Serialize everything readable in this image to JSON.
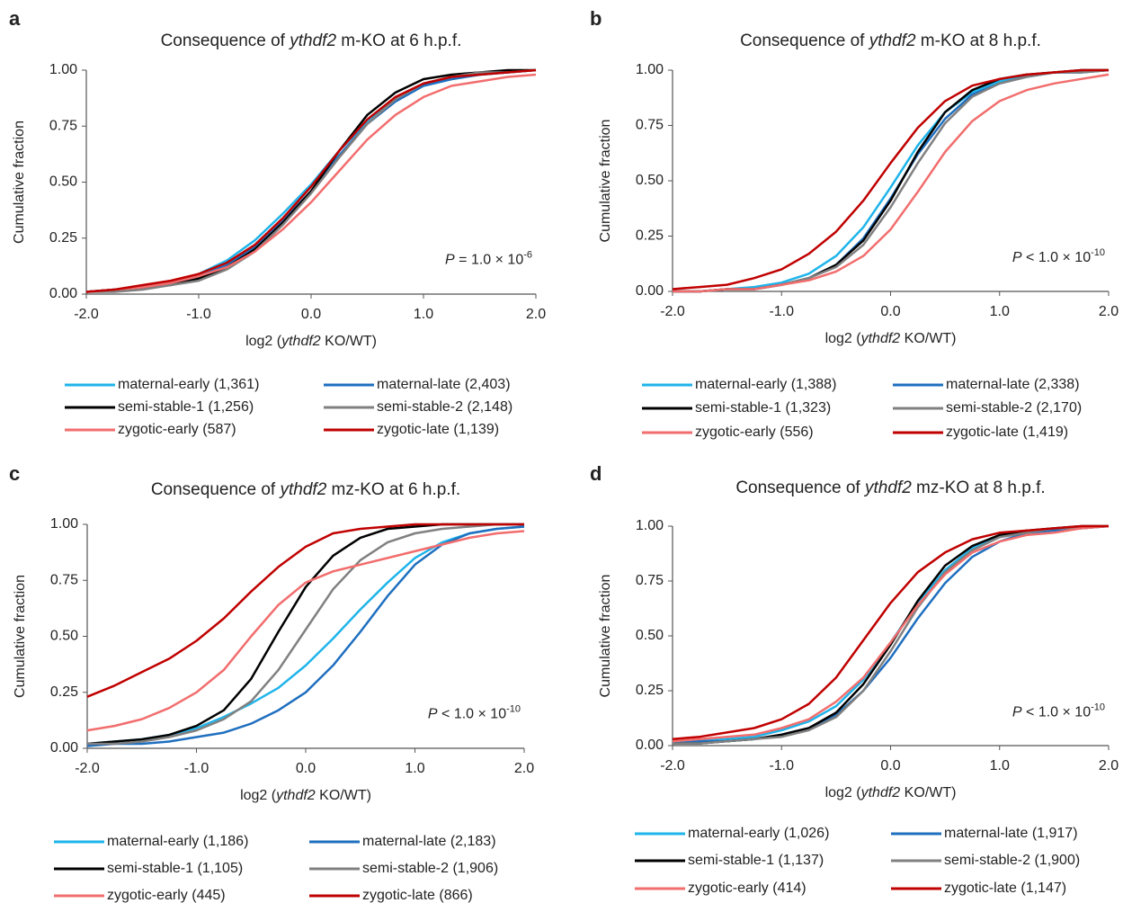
{
  "chart_data": [
    {
      "type": "line",
      "panel": "a",
      "title": [
        "Consequence of ",
        "ythdf2",
        " m-KO at 6 h.p.f."
      ],
      "x_label": [
        "log2 (",
        "ythdf2",
        " KO/WT)"
      ],
      "y_label": "Cumulative fraction",
      "annotation": [
        "P",
        " = 1.0 × 10",
        "-6"
      ],
      "x": [
        -2,
        -1.75,
        -1.5,
        -1.25,
        -1,
        -0.75,
        -0.5,
        -0.25,
        0,
        0.25,
        0.5,
        0.75,
        1,
        1.25,
        1.5,
        1.75,
        2
      ],
      "xlim": [
        -2,
        2
      ],
      "xticks": [
        {
          "value": -2,
          "label": "-2.0"
        },
        {
          "value": -1,
          "label": "-1.0"
        },
        {
          "value": 0,
          "label": "0.0"
        },
        {
          "value": 1,
          "label": "1.0"
        },
        {
          "value": 2,
          "label": "2.0"
        }
      ],
      "ylim": [
        0,
        1
      ],
      "yticks": [
        {
          "value": 0,
          "label": "0.00"
        },
        {
          "value": 0.25,
          "label": "0.25"
        },
        {
          "value": 0.5,
          "label": "0.50"
        },
        {
          "value": 0.75,
          "label": "0.75"
        },
        {
          "value": 1,
          "label": "1.00"
        }
      ],
      "series": [
        {
          "name": "maternal-early (1,361)",
          "color": "#1fb4ea",
          "values": [
            0.01,
            0.02,
            0.03,
            0.05,
            0.09,
            0.15,
            0.24,
            0.36,
            0.49,
            0.64,
            0.77,
            0.87,
            0.93,
            0.96,
            0.98,
            0.99,
            1.0
          ]
        },
        {
          "name": "maternal-late (2,403)",
          "color": "#1f6fbf",
          "values": [
            0.01,
            0.02,
            0.03,
            0.05,
            0.08,
            0.13,
            0.21,
            0.33,
            0.46,
            0.62,
            0.76,
            0.86,
            0.93,
            0.96,
            0.98,
            0.99,
            1.0
          ]
        },
        {
          "name": "semi-stable-1 (1,256)",
          "color": "#000000",
          "values": [
            0.01,
            0.02,
            0.03,
            0.04,
            0.07,
            0.12,
            0.2,
            0.32,
            0.46,
            0.64,
            0.8,
            0.9,
            0.96,
            0.98,
            0.99,
            1.0,
            1.0
          ]
        },
        {
          "name": "semi-stable-2 (2,148)",
          "color": "#808080",
          "values": [
            0.01,
            0.01,
            0.02,
            0.04,
            0.06,
            0.11,
            0.19,
            0.31,
            0.45,
            0.61,
            0.76,
            0.87,
            0.94,
            0.97,
            0.99,
            0.99,
            1.0
          ]
        },
        {
          "name": "zygotic-early (587)",
          "color": "#f26d6d",
          "values": [
            0.01,
            0.02,
            0.03,
            0.05,
            0.08,
            0.12,
            0.19,
            0.29,
            0.41,
            0.55,
            0.69,
            0.8,
            0.88,
            0.93,
            0.95,
            0.97,
            0.98
          ]
        },
        {
          "name": "zygotic-late (1,139)",
          "color": "#c00000",
          "values": [
            0.01,
            0.02,
            0.04,
            0.06,
            0.09,
            0.14,
            0.22,
            0.34,
            0.48,
            0.64,
            0.78,
            0.88,
            0.94,
            0.97,
            0.98,
            0.99,
            1.0
          ]
        }
      ]
    },
    {
      "type": "line",
      "panel": "b",
      "title": [
        "Consequence of ",
        "ythdf2",
        " m-KO at 8 h.p.f."
      ],
      "x_label": [
        "log2 (",
        "ythdf2",
        " KO/WT)"
      ],
      "y_label": "Cumulative fraction",
      "annotation": [
        "P",
        " < 1.0 × 10",
        "-10"
      ],
      "x": [
        -2,
        -1.75,
        -1.5,
        -1.25,
        -1,
        -0.75,
        -0.5,
        -0.25,
        0,
        0.25,
        0.5,
        0.75,
        1,
        1.25,
        1.5,
        1.75,
        2
      ],
      "xlim": [
        -2,
        2
      ],
      "xticks": [
        {
          "value": -2,
          "label": "-2.0"
        },
        {
          "value": -1,
          "label": "-1.0"
        },
        {
          "value": 0,
          "label": "0.0"
        },
        {
          "value": 1,
          "label": "1.0"
        },
        {
          "value": 2,
          "label": "2.0"
        }
      ],
      "ylim": [
        0,
        1
      ],
      "yticks": [
        {
          "value": 0,
          "label": "0.00"
        },
        {
          "value": 0.25,
          "label": "0.25"
        },
        {
          "value": 0.5,
          "label": "0.50"
        },
        {
          "value": 0.75,
          "label": "0.75"
        },
        {
          "value": 1,
          "label": "1.00"
        }
      ],
      "series": [
        {
          "name": "maternal-early (1,388)",
          "color": "#1fb4ea",
          "values": [
            0.0,
            0.0,
            0.01,
            0.02,
            0.04,
            0.08,
            0.16,
            0.29,
            0.47,
            0.66,
            0.81,
            0.9,
            0.95,
            0.97,
            0.99,
            0.99,
            1.0
          ]
        },
        {
          "name": "maternal-late (2,338)",
          "color": "#1f6fbf",
          "values": [
            0.0,
            0.0,
            0.01,
            0.01,
            0.03,
            0.06,
            0.12,
            0.24,
            0.42,
            0.62,
            0.78,
            0.89,
            0.94,
            0.97,
            0.99,
            0.99,
            1.0
          ]
        },
        {
          "name": "semi-stable-1 (1,323)",
          "color": "#000000",
          "values": [
            0.0,
            0.0,
            0.01,
            0.01,
            0.03,
            0.06,
            0.12,
            0.23,
            0.41,
            0.63,
            0.81,
            0.91,
            0.96,
            0.98,
            0.99,
            1.0,
            1.0
          ]
        },
        {
          "name": "semi-stable-2 (2,170)",
          "color": "#808080",
          "values": [
            0.0,
            0.0,
            0.01,
            0.01,
            0.03,
            0.06,
            0.11,
            0.21,
            0.38,
            0.58,
            0.76,
            0.88,
            0.94,
            0.97,
            0.99,
            0.99,
            1.0
          ]
        },
        {
          "name": "zygotic-early (556)",
          "color": "#f26d6d",
          "values": [
            0.0,
            0.0,
            0.01,
            0.01,
            0.03,
            0.05,
            0.09,
            0.16,
            0.28,
            0.45,
            0.63,
            0.77,
            0.86,
            0.91,
            0.94,
            0.96,
            0.98
          ]
        },
        {
          "name": "zygotic-late (1,419)",
          "color": "#c00000",
          "values": [
            0.01,
            0.02,
            0.03,
            0.06,
            0.1,
            0.17,
            0.27,
            0.41,
            0.58,
            0.74,
            0.86,
            0.93,
            0.96,
            0.98,
            0.99,
            1.0,
            1.0
          ]
        }
      ]
    },
    {
      "type": "line",
      "panel": "c",
      "title": [
        "Consequence of ",
        "ythdf2",
        " mz-KO at 6 h.p.f."
      ],
      "x_label": [
        "log2 (",
        "ythdf2",
        " KO/WT)"
      ],
      "y_label": "Cumulative fraction",
      "annotation": [
        "P",
        " < 1.0 × 10",
        "-10"
      ],
      "x": [
        -2,
        -1.75,
        -1.5,
        -1.25,
        -1,
        -0.75,
        -0.5,
        -0.25,
        0,
        0.25,
        0.5,
        0.75,
        1,
        1.25,
        1.5,
        1.75,
        2
      ],
      "xlim": [
        -2,
        2
      ],
      "xticks": [
        {
          "value": -2,
          "label": "-2.0"
        },
        {
          "value": -1,
          "label": "-1.0"
        },
        {
          "value": 0,
          "label": "0.0"
        },
        {
          "value": 1,
          "label": "1.0"
        },
        {
          "value": 2,
          "label": "2.0"
        }
      ],
      "ylim": [
        0,
        1
      ],
      "yticks": [
        {
          "value": 0,
          "label": "0.00"
        },
        {
          "value": 0.25,
          "label": "0.25"
        },
        {
          "value": 0.5,
          "label": "0.50"
        },
        {
          "value": 0.75,
          "label": "0.75"
        },
        {
          "value": 1,
          "label": "1.00"
        }
      ],
      "series": [
        {
          "name": "maternal-early (1,186)",
          "color": "#1fb4ea",
          "values": [
            0.02,
            0.03,
            0.04,
            0.06,
            0.09,
            0.14,
            0.2,
            0.27,
            0.37,
            0.49,
            0.62,
            0.74,
            0.85,
            0.92,
            0.96,
            0.98,
            0.99
          ]
        },
        {
          "name": "maternal-late (2,183)",
          "color": "#1f6fbf",
          "values": [
            0.01,
            0.02,
            0.02,
            0.03,
            0.05,
            0.07,
            0.11,
            0.17,
            0.25,
            0.37,
            0.52,
            0.68,
            0.82,
            0.91,
            0.96,
            0.98,
            0.99
          ]
        },
        {
          "name": "semi-stable-1 (1,105)",
          "color": "#000000",
          "values": [
            0.02,
            0.03,
            0.04,
            0.06,
            0.1,
            0.17,
            0.31,
            0.52,
            0.72,
            0.86,
            0.94,
            0.98,
            0.99,
            1.0,
            1.0,
            1.0,
            1.0
          ]
        },
        {
          "name": "semi-stable-2 (1,906)",
          "color": "#808080",
          "values": [
            0.02,
            0.02,
            0.03,
            0.05,
            0.08,
            0.13,
            0.21,
            0.35,
            0.53,
            0.71,
            0.84,
            0.92,
            0.96,
            0.98,
            0.99,
            1.0,
            1.0
          ]
        },
        {
          "name": "zygotic-early (445)",
          "color": "#f26d6d",
          "values": [
            0.08,
            0.1,
            0.13,
            0.18,
            0.25,
            0.35,
            0.5,
            0.64,
            0.74,
            0.79,
            0.82,
            0.85,
            0.88,
            0.91,
            0.94,
            0.96,
            0.97
          ]
        },
        {
          "name": "zygotic-late (866)",
          "color": "#c00000",
          "values": [
            0.23,
            0.28,
            0.34,
            0.4,
            0.48,
            0.58,
            0.7,
            0.81,
            0.9,
            0.96,
            0.98,
            0.99,
            1.0,
            1.0,
            1.0,
            1.0,
            1.0
          ]
        }
      ]
    },
    {
      "type": "line",
      "panel": "d",
      "title": [
        "Consequence of ",
        "ythdf2",
        " mz-KO at 8 h.p.f."
      ],
      "x_label": [
        "log2 (",
        "ythdf2",
        " KO/WT)"
      ],
      "y_label": "Cumulative fraction",
      "annotation": [
        "P",
        " < 1.0 × 10",
        "-10"
      ],
      "x": [
        -2,
        -1.75,
        -1.5,
        -1.25,
        -1,
        -0.75,
        -0.5,
        -0.25,
        0,
        0.25,
        0.5,
        0.75,
        1,
        1.25,
        1.5,
        1.75,
        2
      ],
      "xlim": [
        -2,
        2
      ],
      "xticks": [
        {
          "value": -2,
          "label": "-2.0"
        },
        {
          "value": -1,
          "label": "-1.0"
        },
        {
          "value": 0,
          "label": "0.0"
        },
        {
          "value": 1,
          "label": "1.0"
        },
        {
          "value": 2,
          "label": "2.0"
        }
      ],
      "ylim": [
        0,
        1
      ],
      "yticks": [
        {
          "value": 0,
          "label": "0.00"
        },
        {
          "value": 0.25,
          "label": "0.25"
        },
        {
          "value": 0.5,
          "label": "0.50"
        },
        {
          "value": 0.75,
          "label": "0.75"
        },
        {
          "value": 1,
          "label": "1.00"
        }
      ],
      "series": [
        {
          "name": "maternal-early (1,026)",
          "color": "#1fb4ea",
          "values": [
            0.01,
            0.02,
            0.03,
            0.04,
            0.07,
            0.11,
            0.18,
            0.3,
            0.47,
            0.65,
            0.8,
            0.9,
            0.95,
            0.97,
            0.99,
            0.99,
            1.0
          ]
        },
        {
          "name": "maternal-late (1,917)",
          "color": "#1f6fbf",
          "values": [
            0.01,
            0.02,
            0.02,
            0.03,
            0.05,
            0.08,
            0.14,
            0.25,
            0.4,
            0.58,
            0.74,
            0.86,
            0.93,
            0.97,
            0.98,
            0.99,
            1.0
          ]
        },
        {
          "name": "semi-stable-1 (1,137)",
          "color": "#000000",
          "values": [
            0.01,
            0.01,
            0.02,
            0.03,
            0.05,
            0.08,
            0.15,
            0.28,
            0.46,
            0.66,
            0.82,
            0.91,
            0.96,
            0.98,
            0.99,
            1.0,
            1.0
          ]
        },
        {
          "name": "semi-stable-2 (1,900)",
          "color": "#808080",
          "values": [
            0.01,
            0.01,
            0.02,
            0.03,
            0.04,
            0.07,
            0.13,
            0.25,
            0.43,
            0.63,
            0.79,
            0.89,
            0.95,
            0.97,
            0.99,
            0.99,
            1.0
          ]
        },
        {
          "name": "zygotic-early (414)",
          "color": "#f26d6d",
          "values": [
            0.02,
            0.03,
            0.04,
            0.05,
            0.08,
            0.12,
            0.2,
            0.31,
            0.47,
            0.64,
            0.78,
            0.88,
            0.93,
            0.96,
            0.97,
            0.99,
            1.0
          ]
        },
        {
          "name": "zygotic-late (1,147)",
          "color": "#c00000",
          "values": [
            0.03,
            0.04,
            0.06,
            0.08,
            0.12,
            0.19,
            0.31,
            0.48,
            0.65,
            0.79,
            0.88,
            0.94,
            0.97,
            0.98,
            0.99,
            1.0,
            1.0
          ]
        }
      ]
    }
  ]
}
